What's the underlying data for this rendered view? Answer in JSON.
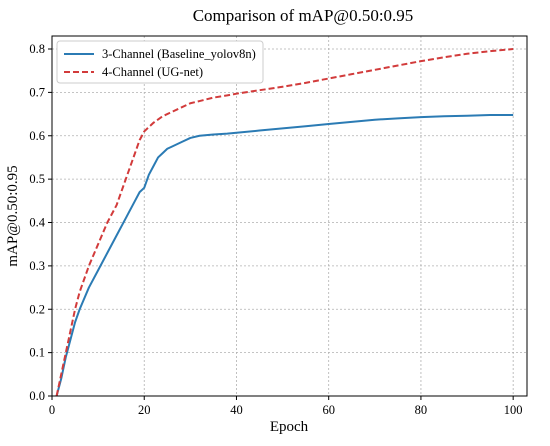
{
  "chart_data": {
    "type": "line",
    "title": "Comparison of mAP@0.50:0.95",
    "xlabel": "Epoch",
    "ylabel": "mAP@0.50:0.95",
    "xlim": [
      0,
      103
    ],
    "ylim": [
      0,
      0.83
    ],
    "xticks": [
      0,
      20,
      40,
      60,
      80,
      100
    ],
    "yticks": [
      0.0,
      0.1,
      0.2,
      0.3,
      0.4,
      0.5,
      0.6,
      0.7,
      0.8
    ],
    "grid": true,
    "legend_position": "top-left",
    "series": [
      {
        "name": "3-Channel (Baseline_yolov8n)",
        "color": "#2b7bb4",
        "style": "solid",
        "x": [
          1,
          2,
          3,
          4,
          5,
          6,
          8,
          10,
          12,
          14,
          16,
          18,
          19,
          20,
          21,
          22,
          23,
          24,
          25,
          26,
          28,
          30,
          32,
          35,
          38,
          40,
          45,
          50,
          55,
          60,
          65,
          70,
          75,
          80,
          85,
          90,
          95,
          100
        ],
        "values": [
          0.0,
          0.04,
          0.09,
          0.13,
          0.17,
          0.2,
          0.25,
          0.29,
          0.33,
          0.37,
          0.41,
          0.45,
          0.47,
          0.48,
          0.51,
          0.53,
          0.55,
          0.56,
          0.57,
          0.575,
          0.585,
          0.595,
          0.6,
          0.603,
          0.605,
          0.607,
          0.612,
          0.617,
          0.622,
          0.627,
          0.632,
          0.637,
          0.64,
          0.643,
          0.645,
          0.646,
          0.648,
          0.648
        ]
      },
      {
        "name": "4-Channel (UG-net)",
        "color": "#d23b3b",
        "style": "dashed",
        "x": [
          1,
          2,
          3,
          4,
          5,
          6,
          8,
          10,
          12,
          14,
          16,
          18,
          19,
          20,
          21,
          22,
          24,
          26,
          28,
          30,
          32,
          35,
          38,
          40,
          45,
          50,
          55,
          60,
          65,
          70,
          75,
          80,
          85,
          90,
          95,
          100
        ],
        "values": [
          0.0,
          0.05,
          0.1,
          0.15,
          0.2,
          0.24,
          0.3,
          0.35,
          0.4,
          0.44,
          0.5,
          0.56,
          0.59,
          0.61,
          0.62,
          0.63,
          0.645,
          0.655,
          0.665,
          0.675,
          0.68,
          0.688,
          0.693,
          0.697,
          0.705,
          0.713,
          0.722,
          0.732,
          0.742,
          0.752,
          0.762,
          0.772,
          0.781,
          0.789,
          0.795,
          0.8
        ]
      }
    ]
  }
}
